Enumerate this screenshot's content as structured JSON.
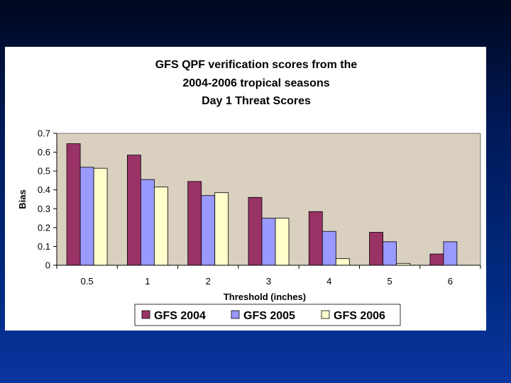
{
  "chart_data": {
    "type": "bar",
    "title_lines": [
      "GFS QPF verification scores from the",
      "2004-2006 tropical seasons",
      "Day 1 Threat Scores"
    ],
    "xlabel": "Threshold (inches)",
    "ylabel": "Bias",
    "categories": [
      "0.5",
      "1",
      "2",
      "3",
      "4",
      "5",
      "6"
    ],
    "ylim": [
      0,
      0.7
    ],
    "yticks": [
      "0",
      "0.1",
      "0.2",
      "0.3",
      "0.4",
      "0.5",
      "0.6",
      "0.7"
    ],
    "ytick_values": [
      0,
      0.1,
      0.2,
      0.3,
      0.4,
      0.5,
      0.6,
      0.7
    ],
    "grid": false,
    "legend_position": "bottom",
    "plot_background": "#d9d0c0",
    "series": [
      {
        "name": "GFS 2004",
        "color": "#993366",
        "values": [
          0.645,
          0.585,
          0.445,
          0.36,
          0.285,
          0.175,
          0.06
        ]
      },
      {
        "name": "GFS 2005",
        "color": "#9999ff",
        "values": [
          0.52,
          0.455,
          0.37,
          0.25,
          0.18,
          0.125,
          0.125
        ]
      },
      {
        "name": "GFS 2006",
        "color": "#ffffcc",
        "values": [
          0.515,
          0.415,
          0.385,
          0.25,
          0.035,
          0.01,
          null
        ]
      }
    ]
  }
}
